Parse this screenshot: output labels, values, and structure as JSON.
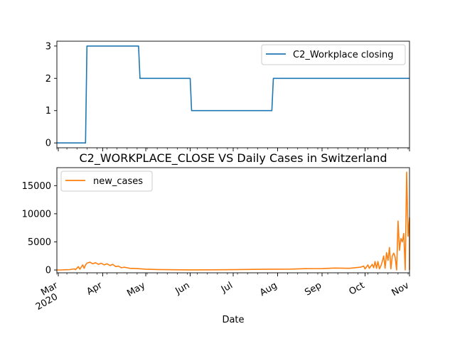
{
  "figure": {
    "title": "C2_WORKPLACE_CLOSE VS Daily Cases in Switzerland",
    "xlabel": "Date"
  },
  "chart_data": [
    {
      "type": "line",
      "x_range": [
        "2020-02-29",
        "2020-11-01"
      ],
      "ylim": [
        -0.15,
        3.15
      ],
      "yticks": [
        0,
        1,
        2,
        3
      ],
      "grid": false,
      "legend_position": "top-right",
      "series": [
        {
          "name": "C2_Workplace closing",
          "color": "#1f77b4",
          "points": [
            [
              "2020-02-29",
              0
            ],
            [
              "2020-03-20",
              0
            ],
            [
              "2020-03-21",
              3
            ],
            [
              "2020-04-26",
              3
            ],
            [
              "2020-04-27",
              2
            ],
            [
              "2020-06-01",
              2
            ],
            [
              "2020-06-02",
              1
            ],
            [
              "2020-07-28",
              1
            ],
            [
              "2020-07-29",
              2
            ],
            [
              "2020-11-01",
              2
            ]
          ]
        }
      ]
    },
    {
      "type": "line",
      "x_range": [
        "2020-02-29",
        "2020-11-01"
      ],
      "ylim": [
        -500,
        18200
      ],
      "yticks": [
        0,
        5000,
        10000,
        15000
      ],
      "ytick_labels": [
        "0",
        "5000",
        "10000",
        "15000"
      ],
      "grid": false,
      "legend_position": "top-left",
      "series": [
        {
          "name": "new_cases",
          "color": "#ff7f0e",
          "points": [
            [
              "2020-02-29",
              0
            ],
            [
              "2020-03-03",
              10
            ],
            [
              "2020-03-06",
              40
            ],
            [
              "2020-03-09",
              70
            ],
            [
              "2020-03-12",
              200
            ],
            [
              "2020-03-13",
              50
            ],
            [
              "2020-03-15",
              600
            ],
            [
              "2020-03-16",
              150
            ],
            [
              "2020-03-18",
              900
            ],
            [
              "2020-03-19",
              300
            ],
            [
              "2020-03-20",
              900
            ],
            [
              "2020-03-21",
              1200
            ],
            [
              "2020-03-23",
              1400
            ],
            [
              "2020-03-25",
              1100
            ],
            [
              "2020-03-27",
              1300
            ],
            [
              "2020-03-29",
              1000
            ],
            [
              "2020-03-31",
              1200
            ],
            [
              "2020-04-02",
              900
            ],
            [
              "2020-04-04",
              1100
            ],
            [
              "2020-04-06",
              800
            ],
            [
              "2020-04-08",
              1000
            ],
            [
              "2020-04-10",
              600
            ],
            [
              "2020-04-12",
              700
            ],
            [
              "2020-04-14",
              400
            ],
            [
              "2020-04-16",
              500
            ],
            [
              "2020-04-20",
              300
            ],
            [
              "2020-04-25",
              250
            ],
            [
              "2020-05-01",
              150
            ],
            [
              "2020-05-10",
              80
            ],
            [
              "2020-05-20",
              40
            ],
            [
              "2020-06-01",
              20
            ],
            [
              "2020-06-15",
              25
            ],
            [
              "2020-07-01",
              60
            ],
            [
              "2020-07-10",
              100
            ],
            [
              "2020-07-20",
              120
            ],
            [
              "2020-08-01",
              140
            ],
            [
              "2020-08-10",
              160
            ],
            [
              "2020-08-20",
              230
            ],
            [
              "2020-09-01",
              250
            ],
            [
              "2020-09-10",
              350
            ],
            [
              "2020-09-20",
              300
            ],
            [
              "2020-09-28",
              500
            ],
            [
              "2020-09-30",
              700
            ],
            [
              "2020-10-01",
              200
            ],
            [
              "2020-10-03",
              900
            ],
            [
              "2020-10-04",
              300
            ],
            [
              "2020-10-06",
              1000
            ],
            [
              "2020-10-07",
              400
            ],
            [
              "2020-10-08",
              1500
            ],
            [
              "2020-10-09",
              300
            ],
            [
              "2020-10-10",
              1500
            ],
            [
              "2020-10-11",
              200
            ],
            [
              "2020-10-12",
              700
            ],
            [
              "2020-10-13",
              1500
            ],
            [
              "2020-10-14",
              2500
            ],
            [
              "2020-10-15",
              300
            ],
            [
              "2020-10-16",
              3100
            ],
            [
              "2020-10-17",
              1700
            ],
            [
              "2020-10-18",
              4000
            ],
            [
              "2020-10-19",
              200
            ],
            [
              "2020-10-20",
              2500
            ],
            [
              "2020-10-21",
              3000
            ],
            [
              "2020-10-22",
              2300
            ],
            [
              "2020-10-23",
              0
            ],
            [
              "2020-10-24",
              8700
            ],
            [
              "2020-10-25",
              3500
            ],
            [
              "2020-10-26",
              5600
            ],
            [
              "2020-10-27",
              5000
            ],
            [
              "2020-10-28",
              6500
            ],
            [
              "2020-10-29",
              0
            ],
            [
              "2020-10-30",
              17400
            ],
            [
              "2020-10-31",
              6000
            ],
            [
              "2020-11-01",
              9300
            ],
            [
              "2020-11-03",
              9100
            ],
            [
              "2020-11-04",
              0
            ]
          ]
        }
      ]
    }
  ],
  "x_axis": {
    "ticks": [
      {
        "date": "2020-03-01",
        "label": "Mar",
        "sublabel": "2020"
      },
      {
        "date": "2020-04-01",
        "label": "Apr",
        "sublabel": ""
      },
      {
        "date": "2020-05-01",
        "label": "May",
        "sublabel": ""
      },
      {
        "date": "2020-06-01",
        "label": "Jun",
        "sublabel": ""
      },
      {
        "date": "2020-07-01",
        "label": "Jul",
        "sublabel": ""
      },
      {
        "date": "2020-08-01",
        "label": "Aug",
        "sublabel": ""
      },
      {
        "date": "2020-09-01",
        "label": "Sep",
        "sublabel": ""
      },
      {
        "date": "2020-10-01",
        "label": "Oct",
        "sublabel": ""
      },
      {
        "date": "2020-11-01",
        "label": "Nov",
        "sublabel": ""
      }
    ]
  }
}
